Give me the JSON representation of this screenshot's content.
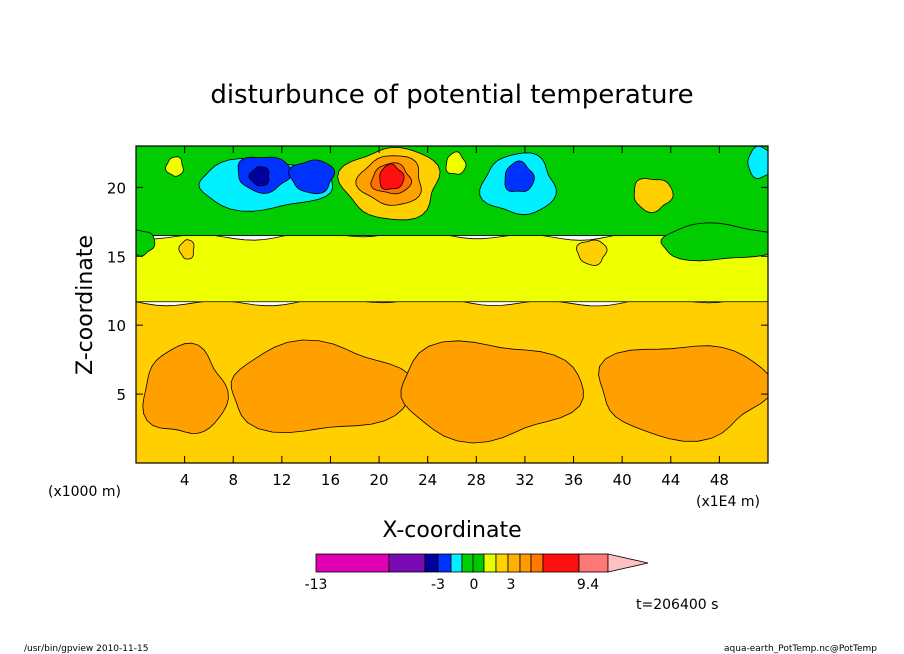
{
  "chart_data": {
    "type": "heatmap",
    "title": "disturbunce of potential temperature",
    "xlabel": "X-coordinate",
    "ylabel": "Z-coordinate",
    "x_unit_left": "(x1000 m)",
    "x_unit_right": "(x1E4 m)",
    "xlim": [
      0,
      52
    ],
    "ylim": [
      0,
      23
    ],
    "x_ticks": [
      "4",
      "8",
      "12",
      "16",
      "20",
      "24",
      "28",
      "32",
      "36",
      "40",
      "44",
      "48"
    ],
    "x_tick_values": [
      4,
      8,
      12,
      16,
      20,
      24,
      28,
      32,
      36,
      40,
      44,
      48
    ],
    "y_ticks": [
      "5",
      "10",
      "15",
      "20"
    ],
    "y_tick_values": [
      5,
      10,
      15,
      20
    ],
    "time_label": "t=206400 s",
    "colorbar": {
      "tick_labels": [
        "-13",
        "-3",
        "0",
        "3",
        "9.4"
      ],
      "colors": [
        "#e000b4",
        "#7a0ab4",
        "#00009c",
        "#0032ff",
        "#00f0ff",
        "#00d200",
        "#00c800",
        "#e6ff00",
        "#ffd200",
        "#ffb000",
        "#ff9a00",
        "#ff7800",
        "#ff1010",
        "#ff7878",
        "#ffc0c0"
      ]
    },
    "bands": [
      {
        "name": "lower",
        "z_range": [
          0,
          11.7
        ],
        "color": "#ffcf00"
      },
      {
        "name": "middle",
        "z_range": [
          11.7,
          16.5
        ],
        "color": "#eeff00"
      },
      {
        "name": "upper",
        "z_range": [
          16.5,
          23
        ],
        "color": "#00cc00"
      }
    ],
    "features": [
      {
        "x": 4,
        "z": 5.2,
        "rx": 3.4,
        "rz": 3.2,
        "color": "#ff9f00"
      },
      {
        "x": 15,
        "z": 5.4,
        "rx": 7.5,
        "rz": 3.2,
        "color": "#ff9f00"
      },
      {
        "x": 29,
        "z": 5.3,
        "rx": 7.5,
        "rz": 3.5,
        "color": "#ff9f00"
      },
      {
        "x": 45,
        "z": 5.3,
        "rx": 7.0,
        "rz": 3.4,
        "color": "#ff9f00"
      },
      {
        "x": 21,
        "z": 20.3,
        "rx": 4.0,
        "rz": 2.6,
        "color": "#ffd000"
      },
      {
        "x": 21,
        "z": 20.5,
        "rx": 2.6,
        "rz": 1.8,
        "color": "#ff9f00"
      },
      {
        "x": 21,
        "z": 20.6,
        "rx": 1.6,
        "rz": 1.1,
        "color": "#ff7000"
      },
      {
        "x": 21,
        "z": 20.7,
        "rx": 1.0,
        "rz": 0.9,
        "color": "#ff1010"
      },
      {
        "x": 10.5,
        "z": 20.2,
        "rx": 5.5,
        "rz": 1.8,
        "color": "#00f0ff"
      },
      {
        "x": 10.5,
        "z": 21.0,
        "rx": 2.2,
        "rz": 1.3,
        "color": "#0032ff"
      },
      {
        "x": 14.5,
        "z": 20.8,
        "rx": 1.8,
        "rz": 1.2,
        "color": "#0032ff"
      },
      {
        "x": 10.2,
        "z": 20.8,
        "rx": 0.8,
        "rz": 0.7,
        "color": "#00009c"
      },
      {
        "x": 31.5,
        "z": 20.2,
        "rx": 3.0,
        "rz": 2.2,
        "color": "#00f0ff"
      },
      {
        "x": 31.5,
        "z": 20.7,
        "rx": 1.2,
        "rz": 1.1,
        "color": "#0032ff"
      },
      {
        "x": 51.5,
        "z": 21.8,
        "rx": 1.2,
        "rz": 1.1,
        "color": "#00f0ff"
      },
      {
        "x": 42.5,
        "z": 19.5,
        "rx": 1.6,
        "rz": 1.2,
        "color": "#ffd000"
      },
      {
        "x": 37.5,
        "z": 15.3,
        "rx": 1.2,
        "rz": 0.9,
        "color": "#ffd000"
      },
      {
        "x": 4.2,
        "z": 15.5,
        "rx": 0.6,
        "rz": 0.7,
        "color": "#ffd000"
      },
      {
        "x": 3.2,
        "z": 21.5,
        "rx": 0.7,
        "rz": 0.7,
        "color": "#eeff00"
      },
      {
        "x": 26.3,
        "z": 21.7,
        "rx": 0.8,
        "rz": 0.8,
        "color": "#eeff00"
      },
      {
        "x": 48.0,
        "z": 16.0,
        "rx": 5.0,
        "rz": 1.3,
        "color": "#00cc00"
      },
      {
        "x": 0.5,
        "z": 16.0,
        "rx": 1.0,
        "rz": 0.9,
        "color": "#00cc00"
      }
    ]
  },
  "footer": {
    "left": "/usr/bin/gpview   2010-11-15",
    "right": "aqua-earth_PotTemp.nc@PotTemp"
  }
}
